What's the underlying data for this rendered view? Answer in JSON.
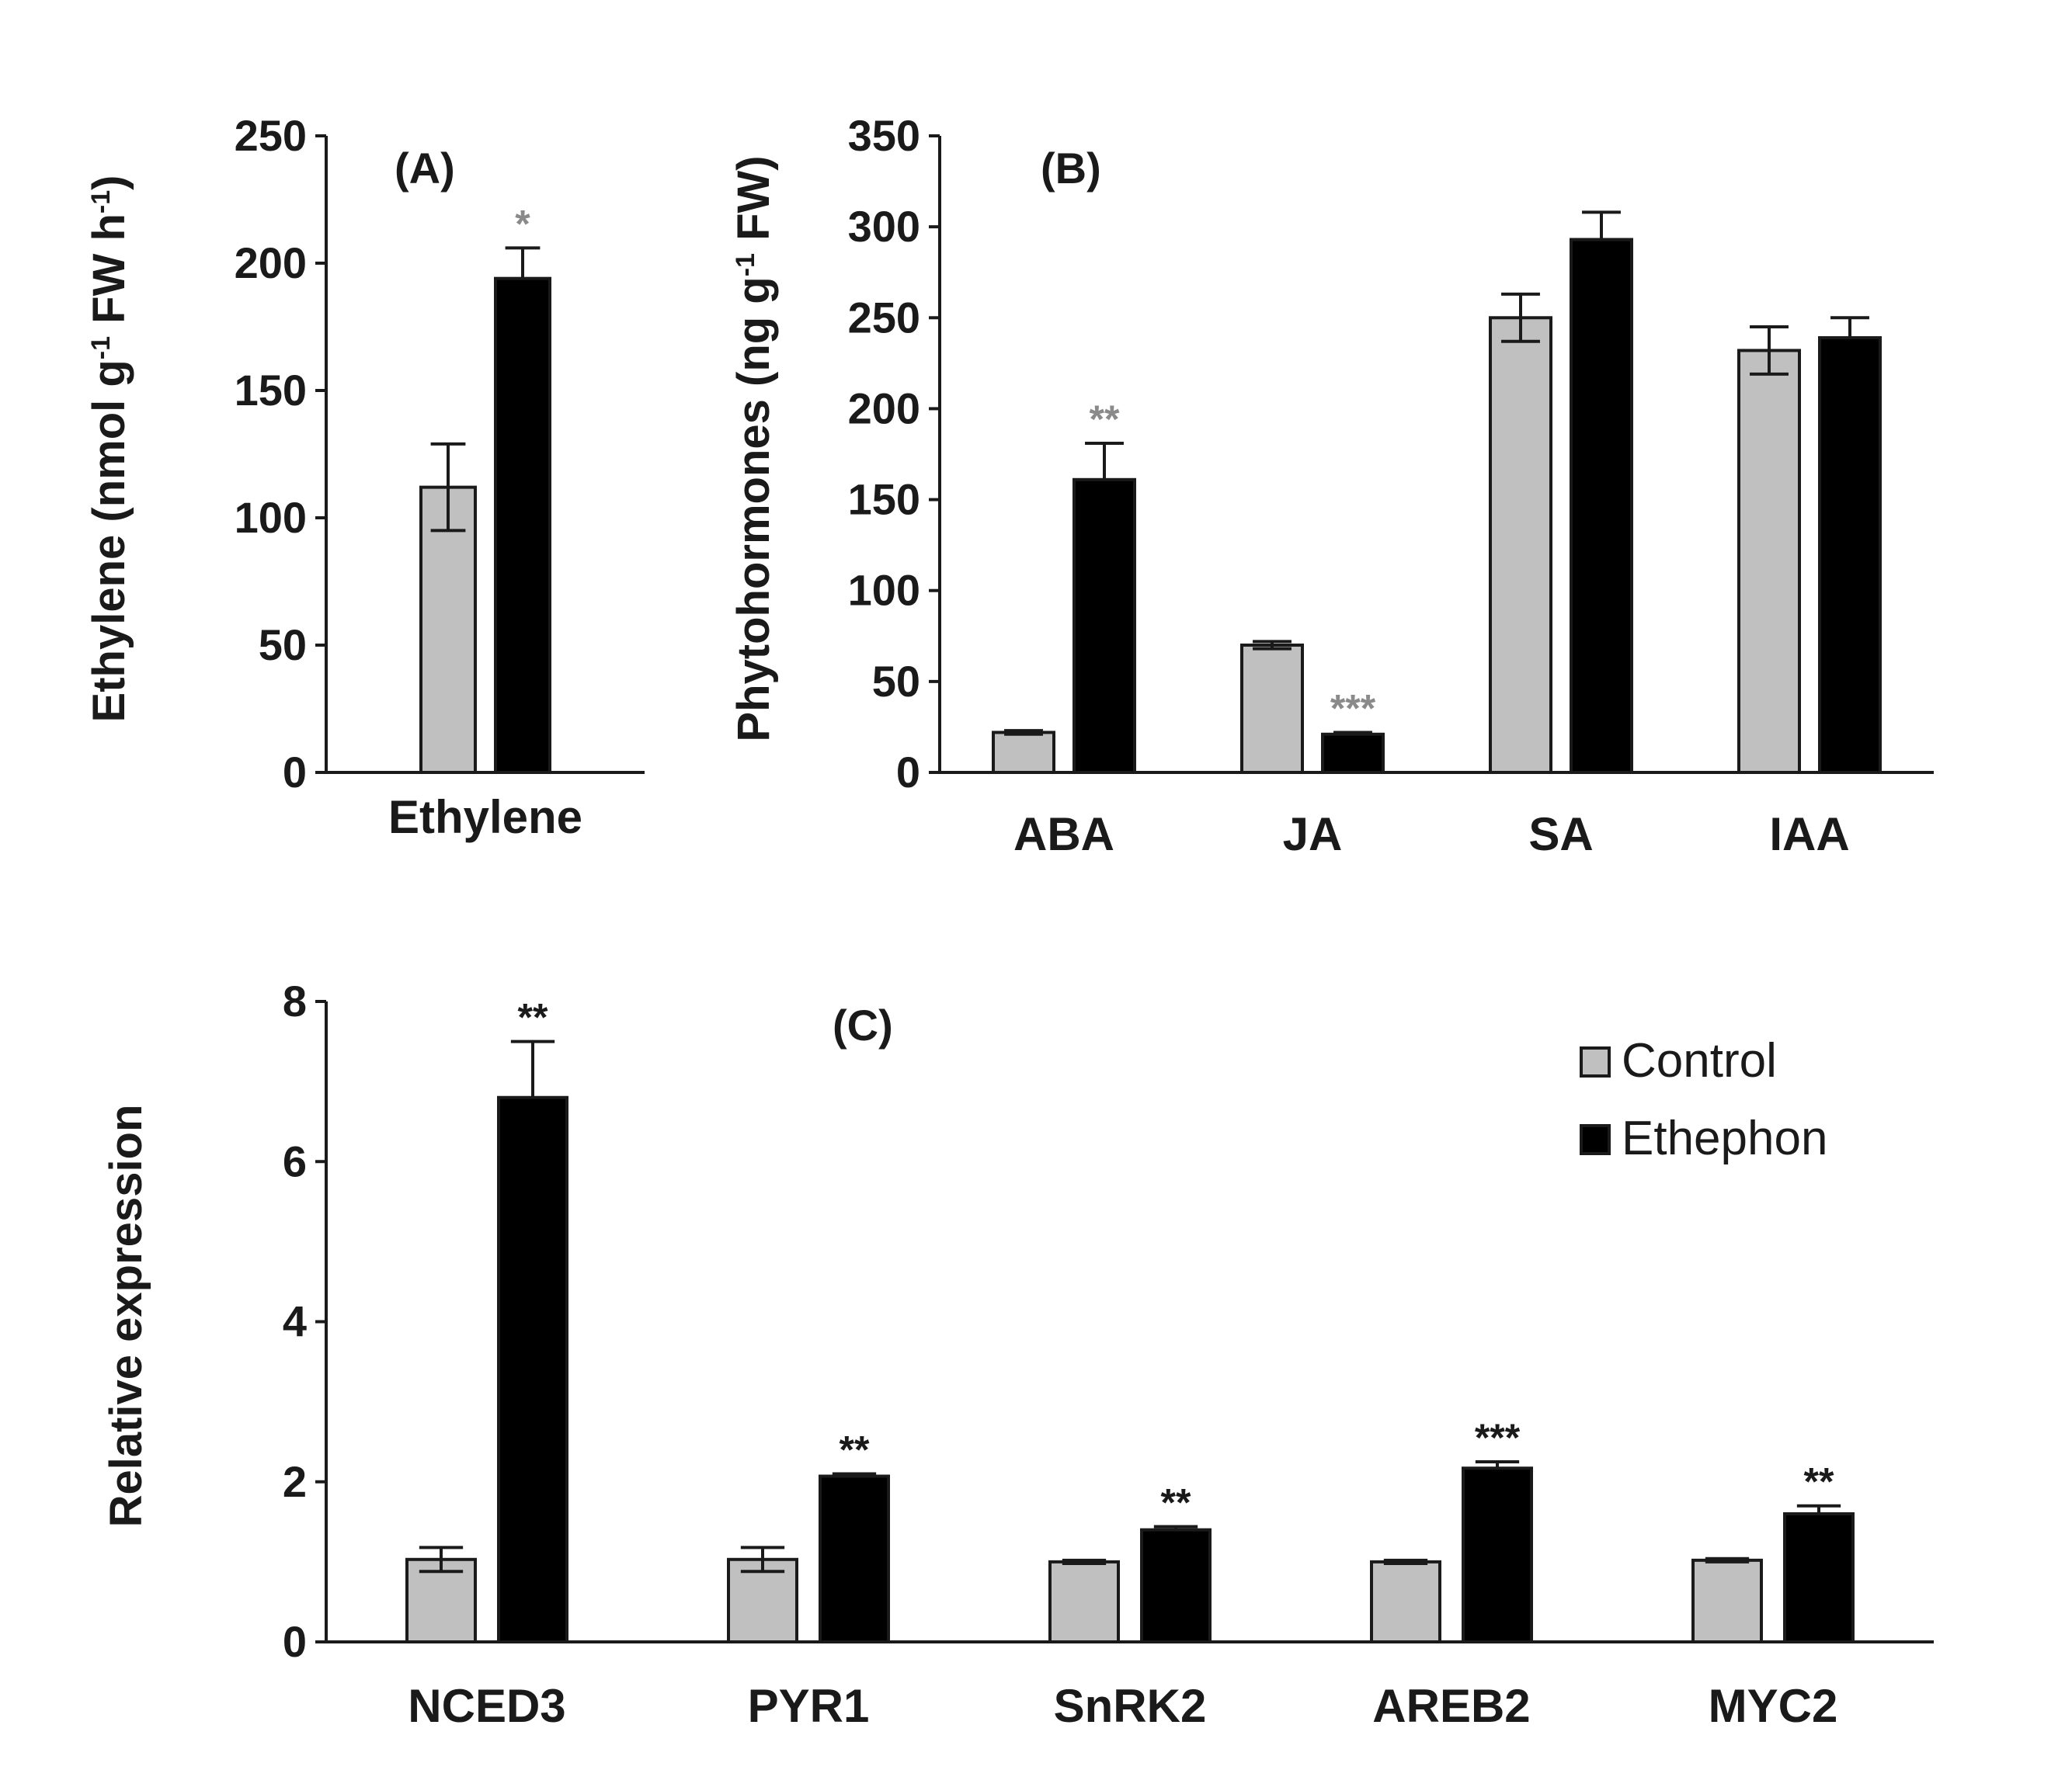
{
  "colors": {
    "control": "#c0c0c0",
    "ethephon": "#000000",
    "axis": "#1a1a1a",
    "sig_dark": "#1a1a1a",
    "sig_gray": "#8a8a8a"
  },
  "legend": {
    "entries": [
      "Control",
      "Ethephon"
    ]
  },
  "chart_data": [
    {
      "id": "A",
      "type": "bar",
      "panel_label": "(A)",
      "ylabel": "Ethylene (nmol g-1 FW h-1)",
      "ylabel_parts": [
        "Ethylene (nmol g",
        "-1",
        " FW h",
        "-1",
        ")"
      ],
      "ylim": [
        0,
        250
      ],
      "yticks": [
        0,
        50,
        100,
        150,
        200,
        250
      ],
      "categories": [
        "Ethylene"
      ],
      "series": [
        {
          "name": "Control",
          "values": [
            112
          ],
          "errors": [
            17
          ],
          "sig": [
            ""
          ]
        },
        {
          "name": "Ethephon",
          "values": [
            194
          ],
          "errors": [
            12
          ],
          "sig": [
            "*"
          ]
        }
      ]
    },
    {
      "id": "B",
      "type": "bar",
      "panel_label": "(B)",
      "ylabel": "Phytohormones (ng g-1 FW)",
      "ylabel_parts": [
        "Phytohormones (ng g",
        "-1",
        " FW)"
      ],
      "ylim": [
        0,
        350
      ],
      "yticks": [
        0,
        50,
        100,
        150,
        200,
        250,
        300,
        350
      ],
      "categories": [
        "ABA",
        "JA",
        "SA",
        "IAA"
      ],
      "series": [
        {
          "name": "Control",
          "values": [
            22,
            70,
            250,
            232
          ],
          "errors": [
            1,
            2,
            13,
            13
          ],
          "sig": [
            "",
            "",
            "",
            ""
          ]
        },
        {
          "name": "Ethephon",
          "values": [
            161,
            21,
            293,
            239
          ],
          "errors": [
            20,
            1,
            15,
            11
          ],
          "sig": [
            "**",
            "***",
            "",
            ""
          ]
        }
      ]
    },
    {
      "id": "C",
      "type": "bar",
      "panel_label": "(C)",
      "ylabel": "Relative expression",
      "ylim": [
        0,
        8
      ],
      "yticks": [
        0,
        2,
        4,
        6,
        8
      ],
      "categories": [
        "NCED3",
        "PYR1",
        "SnRK2",
        "AREB2",
        "MYC2"
      ],
      "series": [
        {
          "name": "Control",
          "values": [
            1.03,
            1.03,
            1.0,
            1.0,
            1.02
          ],
          "errors": [
            0.15,
            0.15,
            0.02,
            0.02,
            0.02
          ],
          "sig": [
            "",
            "",
            "",
            "",
            ""
          ]
        },
        {
          "name": "Ethephon",
          "values": [
            6.8,
            2.07,
            1.4,
            2.17,
            1.6
          ],
          "errors": [
            0.7,
            0.03,
            0.04,
            0.08,
            0.1
          ],
          "sig": [
            "**",
            "**",
            "**",
            "***",
            "**"
          ]
        }
      ]
    }
  ]
}
